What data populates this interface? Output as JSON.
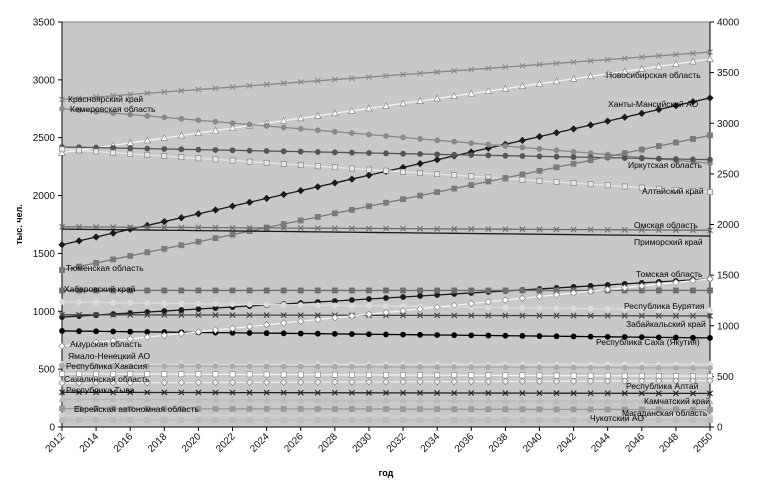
{
  "chart_data": {
    "type": "line",
    "xlabel": "год",
    "ylabel": "тыс. чел.",
    "xlim": [
      2012,
      2050
    ],
    "x_ticks": [
      2012,
      2014,
      2016,
      2018,
      2020,
      2022,
      2024,
      2026,
      2028,
      2030,
      2032,
      2034,
      2036,
      2038,
      2040,
      2042,
      2044,
      2046,
      2048,
      2050
    ],
    "y_left": {
      "range": [
        0,
        3500
      ],
      "ticks": [
        0,
        500,
        1000,
        1500,
        2000,
        2500,
        3000,
        3500
      ]
    },
    "y_right": {
      "range": [
        0,
        4000
      ],
      "ticks": [
        0,
        500,
        1000,
        1500,
        2000,
        2500,
        3000,
        3500,
        4000
      ]
    },
    "grid": false,
    "plot_background": "#c8c8c8",
    "series": [
      {
        "name": "Красноярский край",
        "axis": "left",
        "color": "#8a8a8a",
        "marker": "cross",
        "start": 2830,
        "end": 3240
      },
      {
        "name": "Новосибирская область",
        "axis": "left",
        "color": "#ffffff",
        "marker": "triangle",
        "start": 2370,
        "end": 3180
      },
      {
        "name": "Ханты-Мансийский АО",
        "axis": "right",
        "color": "#1a1a1a",
        "marker": "diamond",
        "start": 1800,
        "end": 3250
      },
      {
        "name": "Кемеровская область",
        "axis": "left",
        "color": "#8a8a8a",
        "marker": "circle",
        "start": 2750,
        "end": 2280
      },
      {
        "name": "Иркутская область",
        "axis": "left",
        "color": "#555555",
        "marker": "circle",
        "start": 2420,
        "end": 2310
      },
      {
        "name": "Алтайский край",
        "axis": "left",
        "color": "#e6e6e6",
        "marker": "square",
        "start": 2400,
        "end": 2030
      },
      {
        "name": "Тюменская область",
        "axis": "right",
        "color": "#7a7a7a",
        "marker": "square",
        "start": 1550,
        "end": 2880
      },
      {
        "name": "Омская область",
        "axis": "left",
        "color": "#6e6e6e",
        "marker": "cross",
        "start": 1730,
        "end": 1700
      },
      {
        "name": "Приморский край",
        "axis": "left",
        "color": "#1a1a1a",
        "marker": "line",
        "start": 1710,
        "end": 1650
      },
      {
        "name": "Томская область",
        "axis": "left",
        "color": "#1a1a1a",
        "marker": "circle",
        "start": 950,
        "end": 1280
      },
      {
        "name": "Хабаровский край",
        "axis": "left",
        "color": "#6e6e6e",
        "marker": "square",
        "start": 1180,
        "end": 1180
      },
      {
        "name": "Республика Бурятия",
        "axis": "left",
        "color": "#dcdcdc",
        "marker": "circle",
        "start": 1080,
        "end": 1010
      },
      {
        "name": "Забайкальский край",
        "axis": "left",
        "color": "#444444",
        "marker": "cross",
        "start": 970,
        "end": 960
      },
      {
        "name": "Республика Саха (Якутия)",
        "axis": "left",
        "color": "#000000",
        "marker": "circle",
        "start": 830,
        "end": 770
      },
      {
        "name": "Амурская область",
        "axis": "left",
        "color": "#ffffff",
        "marker": "diamond",
        "start": 700,
        "end": 1280
      },
      {
        "name": "Ямало-Ненецкий АО",
        "axis": "left",
        "color": "#dddddd",
        "marker": "diamond",
        "start": 540,
        "end": 540
      },
      {
        "name": "Республика Хакасия",
        "axis": "left",
        "color": "#aaaaaa",
        "marker": "circle",
        "start": 530,
        "end": 510
      },
      {
        "name": "Сахалинская область",
        "axis": "left",
        "color": "#ffffff",
        "marker": "square",
        "start": 460,
        "end": 440
      },
      {
        "name": "Республика Алтай",
        "axis": "left",
        "color": "#eeeeee",
        "marker": "diamond",
        "start": 380,
        "end": 400
      },
      {
        "name": "Республика Тыва",
        "axis": "left",
        "color": "#222222",
        "marker": "cross",
        "start": 300,
        "end": 290
      },
      {
        "name": "Камчатский край",
        "axis": "left",
        "color": "#bbbbbb",
        "marker": "triangle",
        "start": 240,
        "end": 220
      },
      {
        "name": "Еврейская автономная область",
        "axis": "left",
        "color": "#999999",
        "marker": "square",
        "start": 160,
        "end": 150
      },
      {
        "name": "Магаданская область",
        "axis": "left",
        "color": "#d0d0d0",
        "marker": "circle",
        "start": 100,
        "end": 90
      },
      {
        "name": "Чукотский АО",
        "axis": "left",
        "color": "#bbbbbb",
        "marker": "square",
        "start": 60,
        "end": 60
      }
    ]
  }
}
